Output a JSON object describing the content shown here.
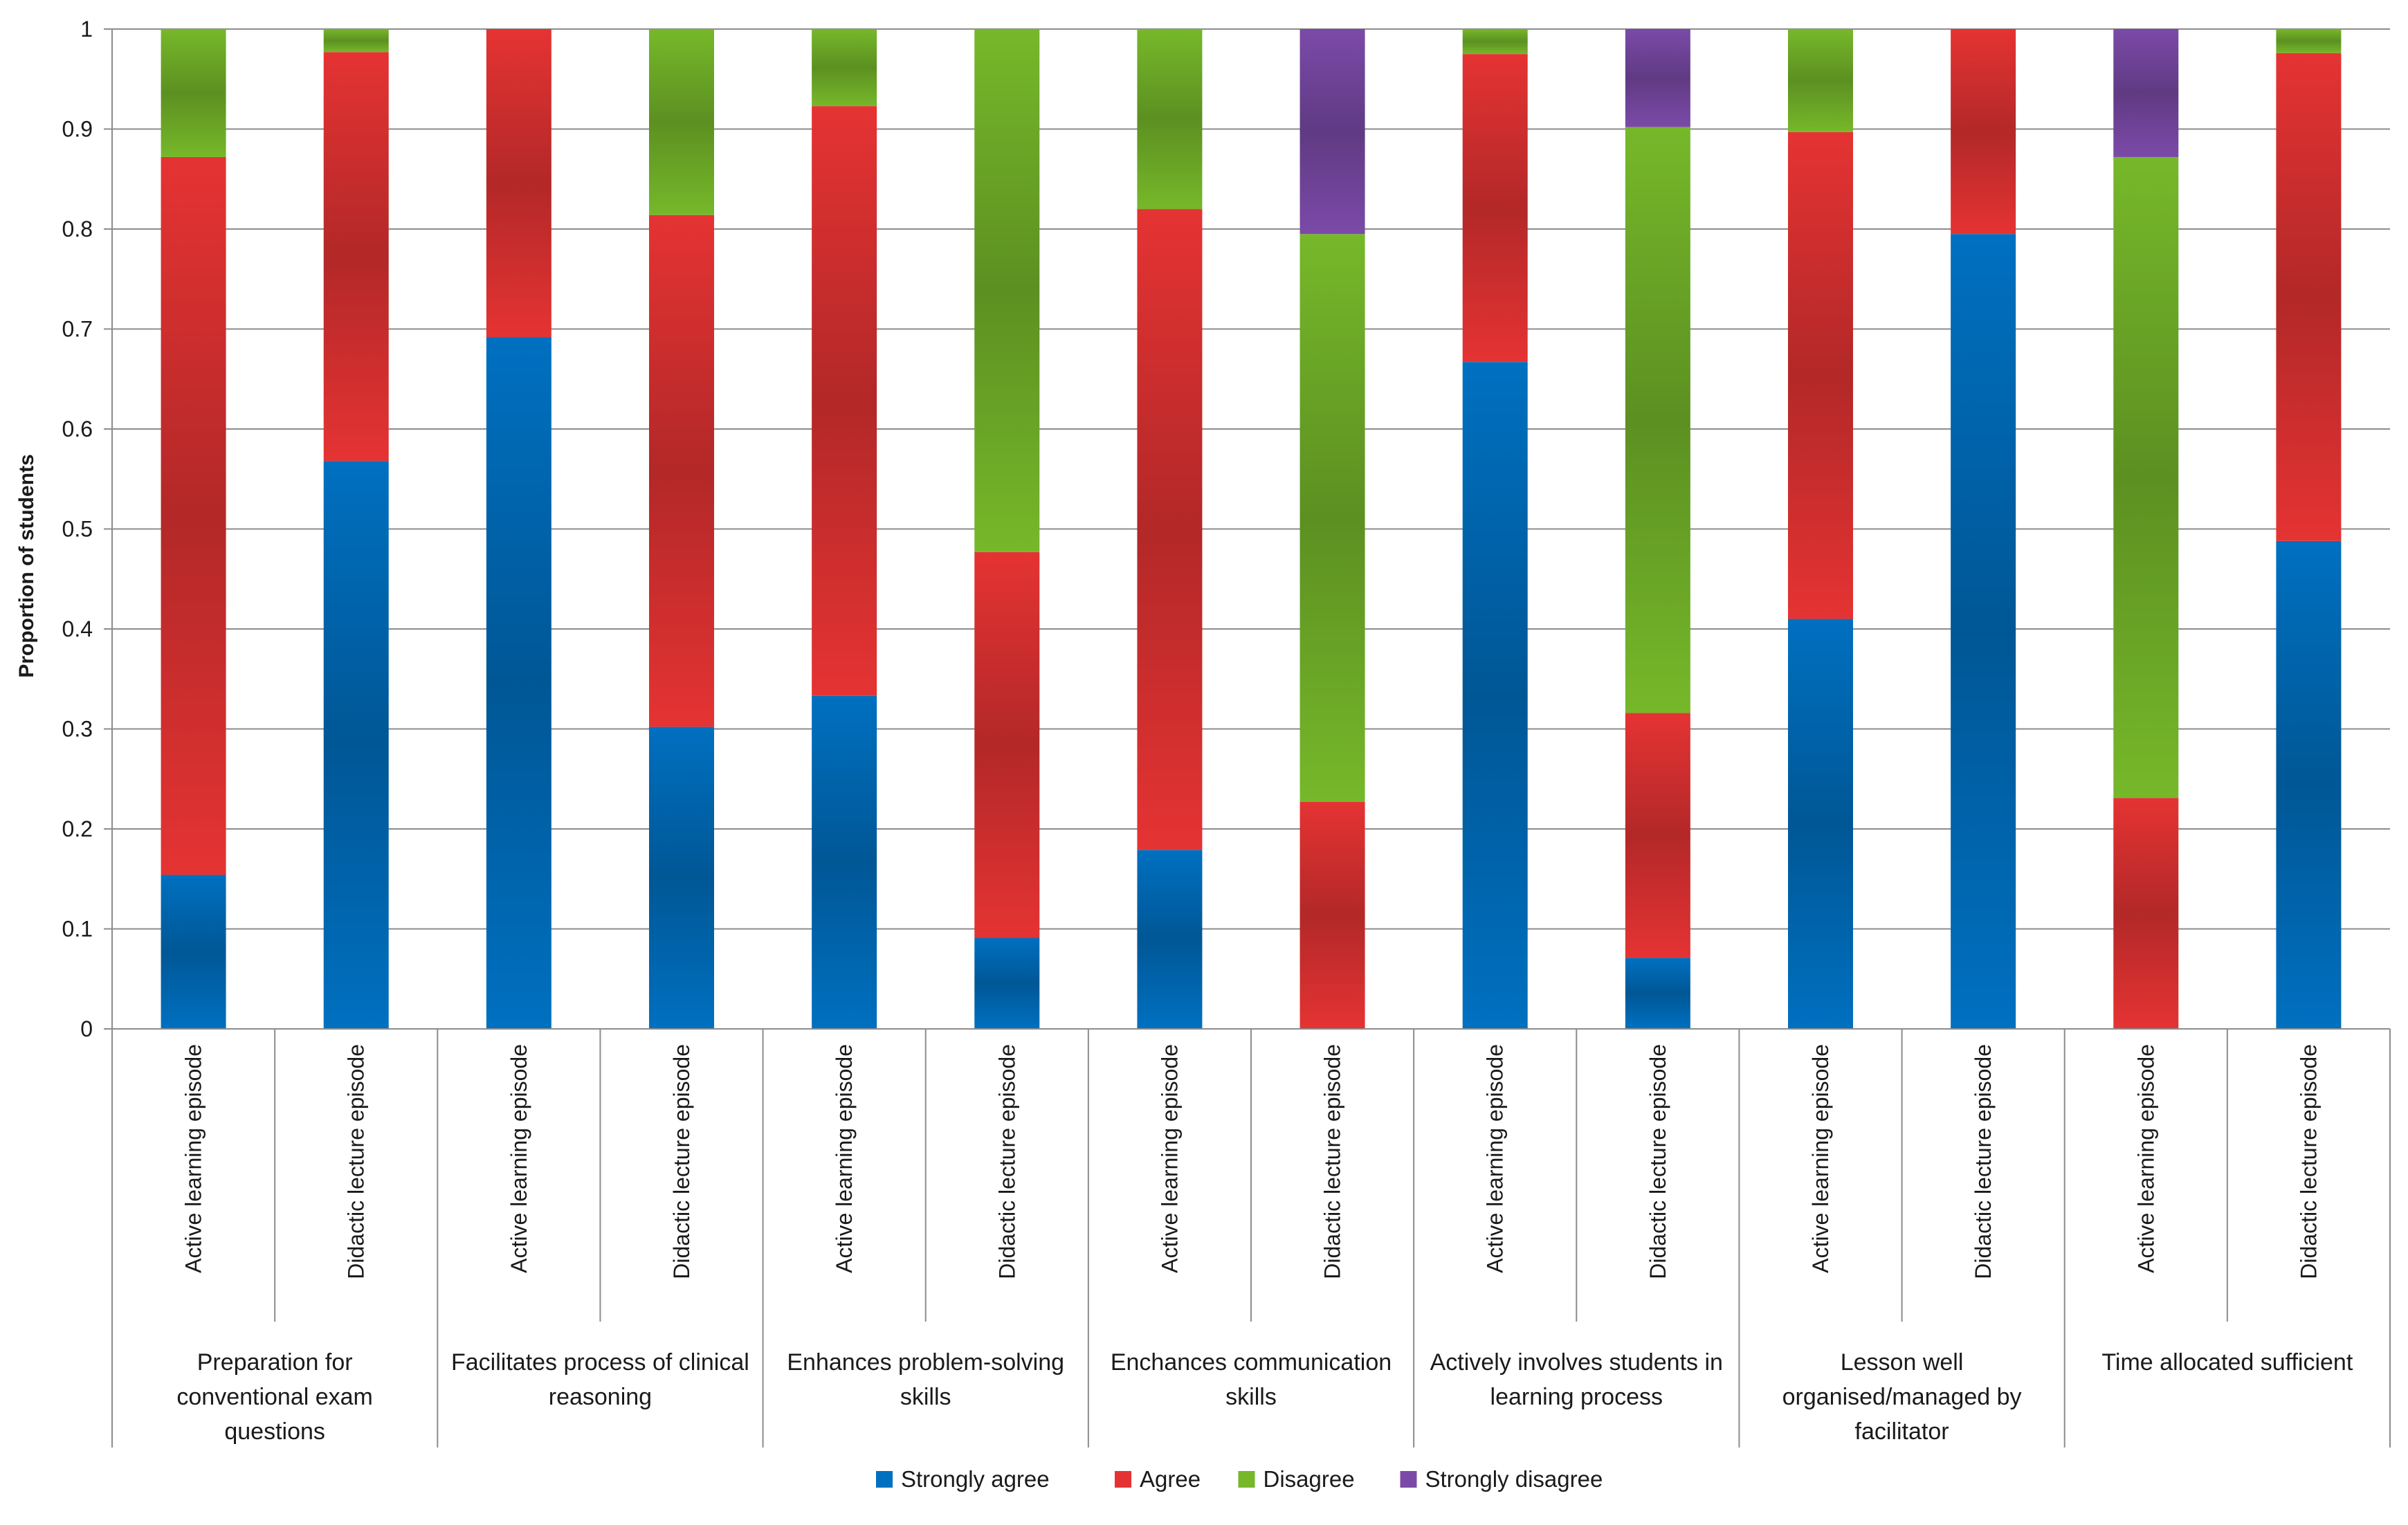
{
  "chart_data": {
    "type": "bar",
    "stacked": true,
    "title": "",
    "xlabel": "",
    "ylabel": "Proportion of students",
    "ylim": [
      0,
      1
    ],
    "yticks": [
      "0",
      "0.1",
      "0.2",
      "0.3",
      "0.4",
      "0.5",
      "0.6",
      "0.7",
      "0.8",
      "0.9",
      "1"
    ],
    "grid": true,
    "legend_position": "bottom",
    "groups": [
      "Preparation for conventional exam questions",
      "Facilitates process of clinical reasoning",
      "Enhances problem-solving skills",
      "Enchances communication skills",
      "Actively involves students in learning process",
      "Lesson well organised/managed by facilitator",
      "Time allocated sufficient"
    ],
    "group_label_lines": [
      [
        "Preparation for",
        "conventional exam",
        "questions"
      ],
      [
        "Facilitates process of clinical",
        "reasoning"
      ],
      [
        "Enhances problem-solving",
        "skills"
      ],
      [
        "Enchances communication",
        "skills"
      ],
      [
        "Actively involves students in",
        "learning process"
      ],
      [
        "Lesson well",
        "organised/managed by",
        "facilitator"
      ],
      [
        "Time allocated sufficient"
      ]
    ],
    "categories": [
      "Active learning episode",
      "Didactic lecture episode",
      "Active learning episode",
      "Didactic lecture episode",
      "Active learning episode",
      "Didactic lecture episode",
      "Active learning episode",
      "Didactic lecture episode",
      "Active learning episode",
      "Didactic lecture episode",
      "Active learning episode",
      "Didactic lecture episode",
      "Active learning episode",
      "Didactic lecture episode"
    ],
    "series": [
      {
        "name": "Strongly agree",
        "color": "#0070c0",
        "values": [
          0.154,
          0.568,
          0.692,
          0.302,
          0.333,
          0.091,
          0.179,
          0,
          0.667,
          0.071,
          0.41,
          0.795,
          0,
          0.488
        ]
      },
      {
        "name": "Agree",
        "color": "#e53333",
        "values": [
          0.718,
          0.409,
          0.308,
          0.512,
          0.59,
          0.386,
          0.641,
          0.227,
          0.308,
          0.245,
          0.487,
          0.205,
          0.231,
          0.488
        ]
      },
      {
        "name": "Disagree",
        "color": "#76b82a",
        "values": [
          0.128,
          0.023,
          0,
          0.186,
          0.077,
          0.523,
          0.18,
          0.568,
          0.025,
          0.586,
          0.103,
          0,
          0.641,
          0.024
        ]
      },
      {
        "name": "Strongly disagree",
        "color": "#7b4aa8",
        "values": [
          0,
          0,
          0,
          0,
          0,
          0,
          0,
          0.205,
          0,
          0.098,
          0,
          0,
          0.128,
          0
        ]
      }
    ]
  }
}
